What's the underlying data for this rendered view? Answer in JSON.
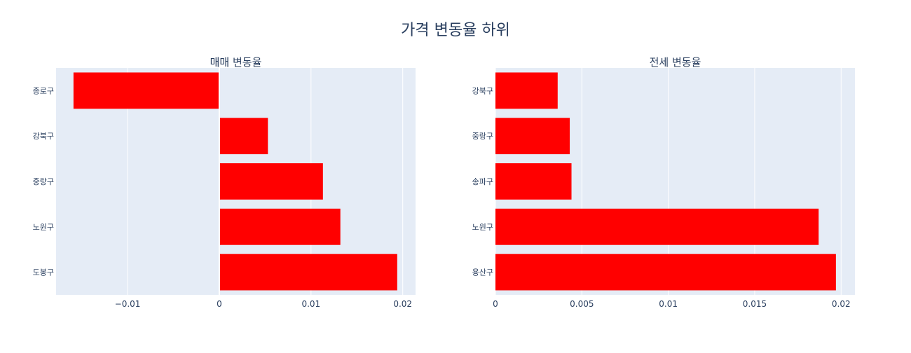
{
  "title": "가격 변동율 하위",
  "colors": {
    "background": "#ffffff",
    "plot_bg": "#e5ecf6",
    "grid": "#ffffff",
    "bar": "#ff0000",
    "text": "#2a3f5f"
  },
  "chart_data": [
    {
      "type": "bar",
      "orientation": "horizontal",
      "title": "매매 변동율",
      "categories": [
        "종로구",
        "강북구",
        "중랑구",
        "노원구",
        "도봉구"
      ],
      "values": [
        -0.0159,
        0.0053,
        0.0113,
        0.0132,
        0.0194
      ],
      "xlim": [
        -0.0178,
        0.0214
      ],
      "xticks": [
        -0.01,
        0,
        0.01,
        0.02
      ],
      "xtick_labels": [
        "−0.01",
        "0",
        "0.01",
        "0.02"
      ],
      "grid": true,
      "legend": "none"
    },
    {
      "type": "bar",
      "orientation": "horizontal",
      "title": "전세 변동율",
      "categories": [
        "강북구",
        "중랑구",
        "송파구",
        "노원구",
        "용산구"
      ],
      "values": [
        0.0036,
        0.0043,
        0.0044,
        0.0187,
        0.0197
      ],
      "xlim": [
        0,
        0.0208
      ],
      "xticks": [
        0,
        0.005,
        0.01,
        0.015,
        0.02
      ],
      "xtick_labels": [
        "0",
        "0.005",
        "0.01",
        "0.015",
        "0.02"
      ],
      "grid": true,
      "legend": "none"
    }
  ]
}
